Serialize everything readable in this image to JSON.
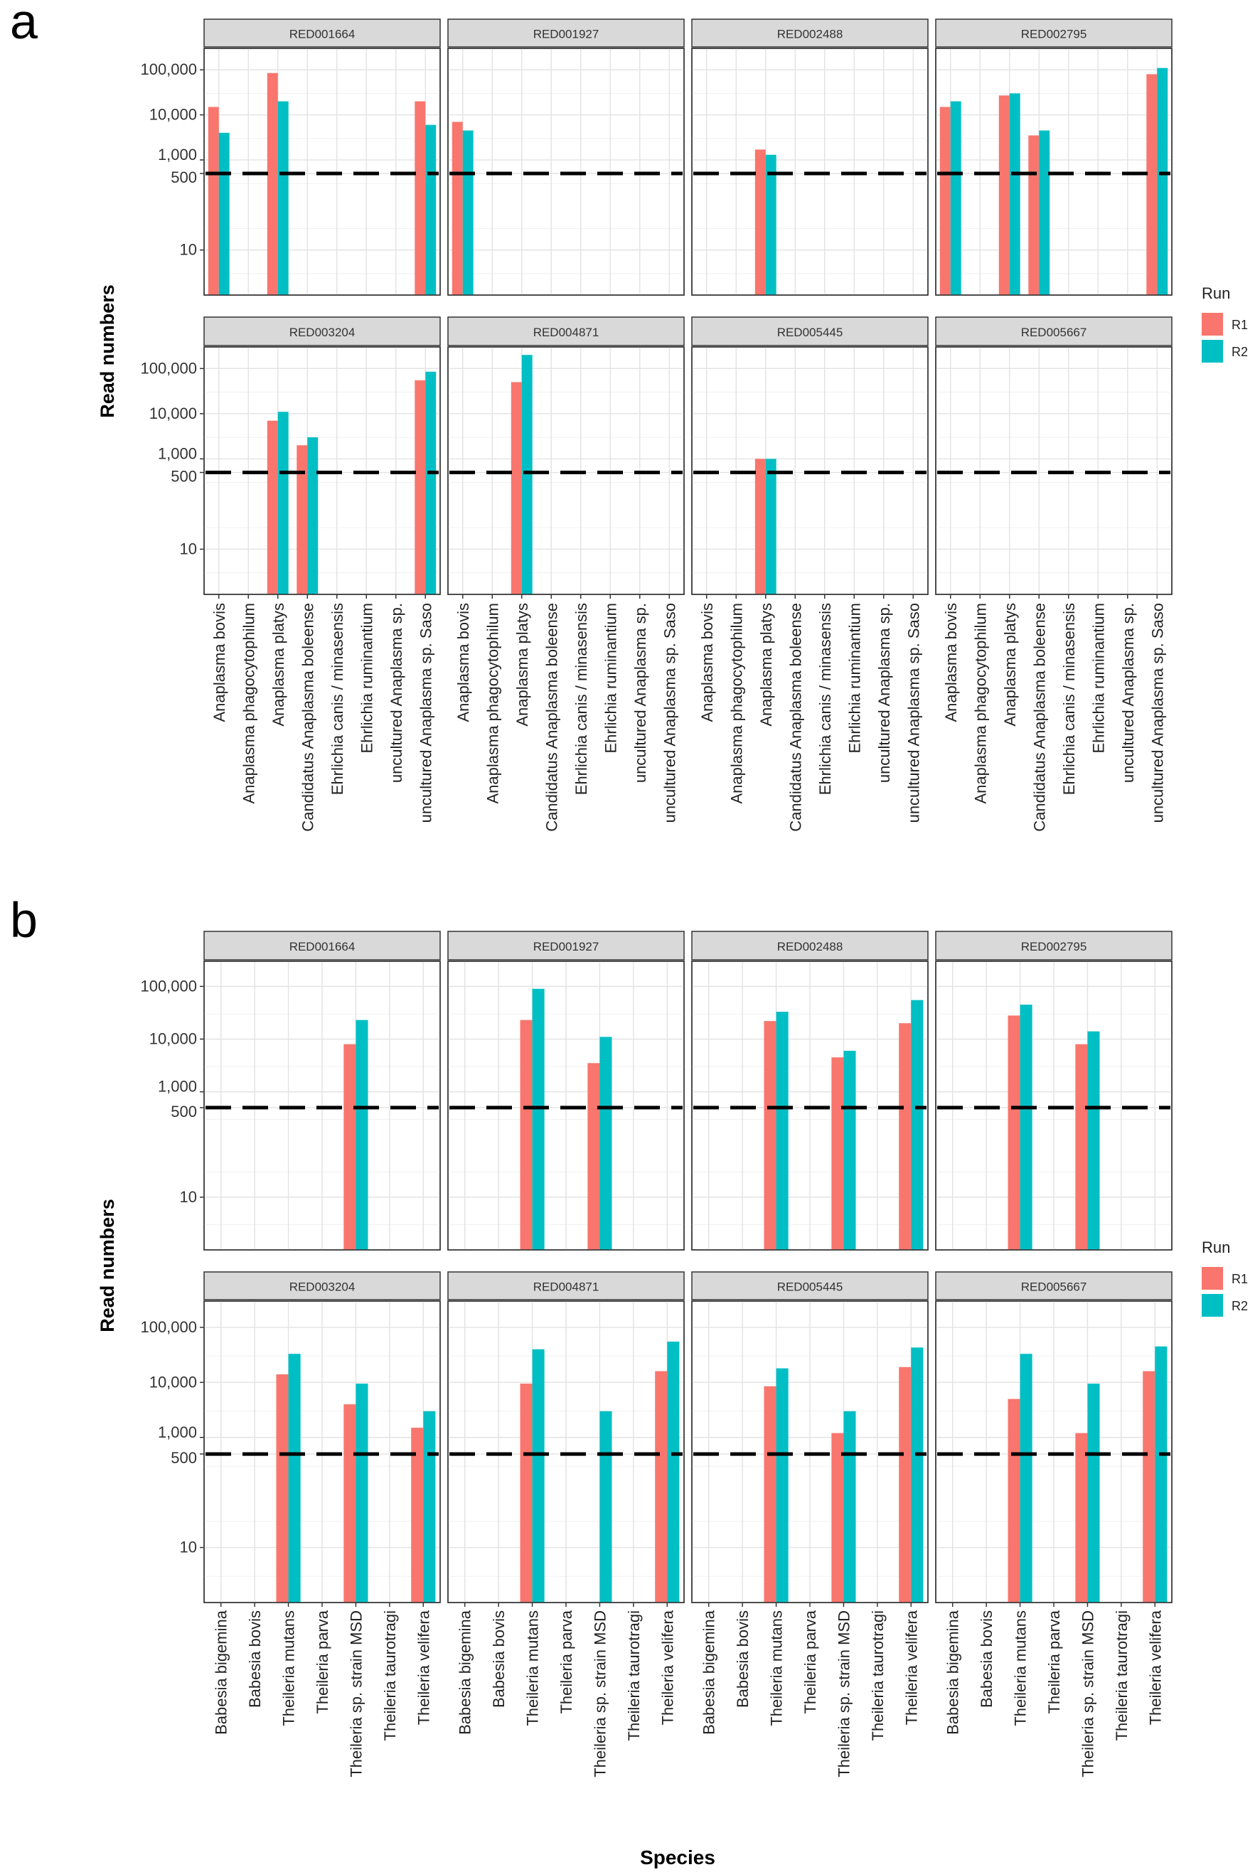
{
  "figure": {
    "xlabel": "Species",
    "ylabel": "Read numbers",
    "legend_title": "Run",
    "legend_position": "right",
    "threshold_line": 500
  },
  "run_colors": {
    "R1": "#F8766D",
    "R2": "#00BFC4"
  },
  "chart_data": [
    {
      "panel": "a",
      "type": "bar",
      "yscale": "log10",
      "y_ticks": [
        10,
        500,
        1000,
        10000,
        100000
      ],
      "y_tick_labels": [
        "10",
        "500",
        "1,000",
        "10,000",
        "100,000"
      ],
      "ylim": [
        1,
        300000
      ],
      "hline": 500,
      "categories": [
        "Anaplasma bovis",
        "Anaplasma phagocytophilum",
        "Anaplasma platys",
        "Candidatus Anaplasma boleense",
        "Ehrlichia canis / minasensis",
        "Ehrlichia ruminantium",
        "uncultured Anaplasma sp.",
        "uncultured Anaplasma sp. Saso"
      ],
      "legend": [
        "R1",
        "R2"
      ],
      "facets": [
        {
          "title": "RED001664",
          "series": [
            {
              "name": "R1",
              "values": [
                15000,
                null,
                85000,
                null,
                null,
                null,
                null,
                20000
              ]
            },
            {
              "name": "R2",
              "values": [
                4000,
                null,
                20000,
                null,
                null,
                null,
                null,
                6000
              ]
            }
          ]
        },
        {
          "title": "RED001927",
          "series": [
            {
              "name": "R1",
              "values": [
                7000,
                null,
                null,
                null,
                null,
                null,
                null,
                null
              ]
            },
            {
              "name": "R2",
              "values": [
                4500,
                null,
                null,
                null,
                null,
                null,
                null,
                null
              ]
            }
          ]
        },
        {
          "title": "RED002488",
          "series": [
            {
              "name": "R1",
              "values": [
                null,
                null,
                1700,
                null,
                null,
                null,
                null,
                null
              ]
            },
            {
              "name": "R2",
              "values": [
                null,
                null,
                1300,
                null,
                null,
                null,
                null,
                null
              ]
            }
          ]
        },
        {
          "title": "RED002795",
          "series": [
            {
              "name": "R1",
              "values": [
                15000,
                null,
                27000,
                3500,
                null,
                null,
                null,
                80000
              ]
            },
            {
              "name": "R2",
              "values": [
                20000,
                null,
                30000,
                4500,
                null,
                null,
                null,
                110000
              ]
            }
          ]
        },
        {
          "title": "RED003204",
          "series": [
            {
              "name": "R1",
              "values": [
                null,
                null,
                7000,
                2000,
                null,
                null,
                null,
                55000
              ]
            },
            {
              "name": "R2",
              "values": [
                null,
                null,
                11000,
                3000,
                null,
                null,
                null,
                85000
              ]
            }
          ]
        },
        {
          "title": "RED004871",
          "series": [
            {
              "name": "R1",
              "values": [
                null,
                null,
                50000,
                null,
                null,
                null,
                null,
                null
              ]
            },
            {
              "name": "R2",
              "values": [
                null,
                null,
                200000,
                null,
                null,
                null,
                null,
                null
              ]
            }
          ]
        },
        {
          "title": "RED005445",
          "series": [
            {
              "name": "R1",
              "values": [
                null,
                null,
                1000,
                null,
                null,
                null,
                null,
                null
              ]
            },
            {
              "name": "R2",
              "values": [
                null,
                null,
                1000,
                null,
                null,
                null,
                null,
                null
              ]
            }
          ]
        },
        {
          "title": "RED005667",
          "series": [
            {
              "name": "R1",
              "values": [
                null,
                null,
                null,
                null,
                null,
                null,
                null,
                null
              ]
            },
            {
              "name": "R2",
              "values": [
                null,
                null,
                null,
                null,
                null,
                null,
                null,
                null
              ]
            }
          ]
        }
      ]
    },
    {
      "panel": "b",
      "type": "bar",
      "yscale": "log10",
      "y_ticks": [
        10,
        500,
        1000,
        10000,
        100000
      ],
      "y_tick_labels": [
        "10",
        "500",
        "1,000",
        "10,000",
        "100,000"
      ],
      "ylim": [
        1,
        300000
      ],
      "hline": 500,
      "categories": [
        "Babesia bigemina",
        "Babesia bovis",
        "Theileria mutans",
        "Theileria parva",
        "Theileria sp. strain MSD",
        "Theileria taurotragi",
        "Theileria velifera"
      ],
      "legend": [
        "R1",
        "R2"
      ],
      "facets": [
        {
          "title": "RED001664",
          "series": [
            {
              "name": "R1",
              "values": [
                null,
                null,
                null,
                null,
                8000,
                null,
                null
              ]
            },
            {
              "name": "R2",
              "values": [
                null,
                null,
                null,
                null,
                23000,
                null,
                null
              ]
            }
          ]
        },
        {
          "title": "RED001927",
          "series": [
            {
              "name": "R1",
              "values": [
                null,
                null,
                23000,
                null,
                3500,
                null,
                null
              ]
            },
            {
              "name": "R2",
              "values": [
                null,
                null,
                90000,
                null,
                11000,
                null,
                null
              ]
            }
          ]
        },
        {
          "title": "RED002488",
          "series": [
            {
              "name": "R1",
              "values": [
                null,
                null,
                22000,
                null,
                4500,
                null,
                20000
              ]
            },
            {
              "name": "R2",
              "values": [
                null,
                null,
                33000,
                null,
                6000,
                null,
                55000
              ]
            }
          ]
        },
        {
          "title": "RED002795",
          "series": [
            {
              "name": "R1",
              "values": [
                null,
                null,
                28000,
                null,
                8000,
                null,
                null
              ]
            },
            {
              "name": "R2",
              "values": [
                null,
                null,
                45000,
                null,
                14000,
                null,
                null
              ]
            }
          ]
        },
        {
          "title": "RED003204",
          "series": [
            {
              "name": "R1",
              "values": [
                null,
                null,
                14000,
                null,
                4000,
                null,
                1500
              ]
            },
            {
              "name": "R2",
              "values": [
                null,
                null,
                33000,
                null,
                9500,
                null,
                3000
              ]
            }
          ]
        },
        {
          "title": "RED004871",
          "series": [
            {
              "name": "R1",
              "values": [
                null,
                null,
                9500,
                null,
                null,
                null,
                16000
              ]
            },
            {
              "name": "R2",
              "values": [
                null,
                null,
                40000,
                null,
                3000,
                null,
                55000
              ]
            }
          ]
        },
        {
          "title": "RED005445",
          "series": [
            {
              "name": "R1",
              "values": [
                null,
                null,
                8500,
                null,
                1200,
                null,
                19000
              ]
            },
            {
              "name": "R2",
              "values": [
                null,
                null,
                18000,
                null,
                3000,
                null,
                43000
              ]
            }
          ]
        },
        {
          "title": "RED005667",
          "series": [
            {
              "name": "R1",
              "values": [
                null,
                null,
                5000,
                null,
                1200,
                null,
                16000
              ]
            },
            {
              "name": "R2",
              "values": [
                null,
                null,
                33000,
                null,
                9500,
                null,
                45000
              ]
            }
          ]
        }
      ]
    }
  ]
}
